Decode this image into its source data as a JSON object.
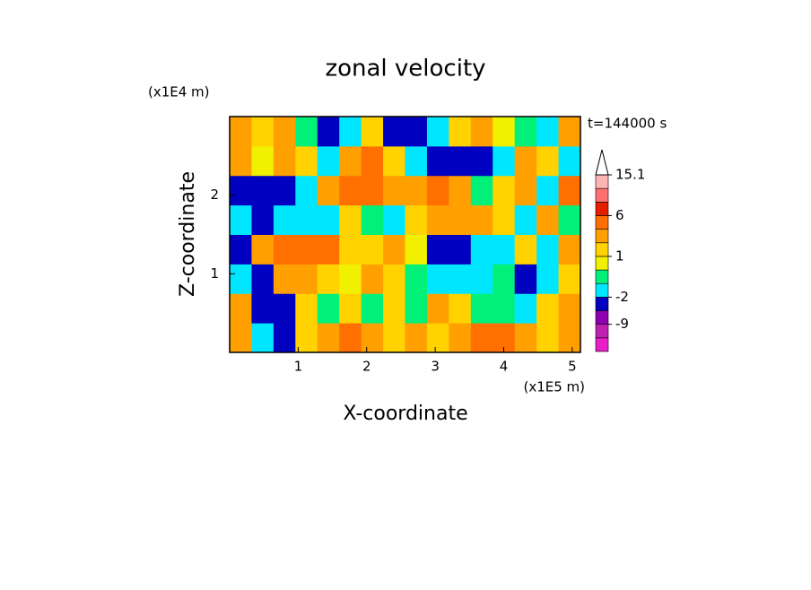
{
  "chart_data": {
    "type": "contour",
    "title": "zonal velocity",
    "x_label": "X-coordinate",
    "y_label": "Z-coordinate",
    "x_unit": "(x1E5 m)",
    "y_unit": "(x1E4 m)",
    "annotation": "t=144000 s",
    "xlim": [
      0,
      5.12
    ],
    "ylim": [
      0,
      3
    ],
    "xticks": [
      1,
      2,
      3,
      4,
      5
    ],
    "yticks": [
      1,
      2
    ],
    "x": [
      0.16,
      0.48,
      0.8,
      1.12,
      1.44,
      1.76,
      2.08,
      2.4,
      2.72,
      3.04,
      3.36,
      3.68,
      4.0,
      4.32,
      4.64,
      4.96
    ],
    "y": [
      0.1875,
      0.5625,
      0.9375,
      1.3125,
      1.6875,
      2.0625,
      2.4375,
      2.8125
    ],
    "z": [
      [
        3,
        -1.5,
        -5,
        1,
        3,
        4,
        3,
        1,
        3,
        1,
        3,
        4,
        4,
        3,
        1,
        3
      ],
      [
        3,
        -5,
        -5,
        1,
        -0.5,
        1,
        -0.5,
        1,
        -0.5,
        3,
        1,
        -0.5,
        -0.5,
        -1.5,
        1,
        3
      ],
      [
        -1.5,
        -5,
        3,
        3,
        1,
        0.5,
        3,
        1,
        -0.5,
        -1.5,
        -1.5,
        -1.5,
        -0.5,
        -5,
        -1.5,
        1
      ],
      [
        -5,
        3,
        5,
        5,
        4,
        1,
        1,
        3,
        0.5,
        -5,
        -5,
        -1.5,
        -1.5,
        1,
        -1.5,
        3
      ],
      [
        -1.5,
        -5,
        -1.5,
        -1.5,
        -1.5,
        1,
        -0.5,
        -1.5,
        1,
        3,
        3,
        3,
        1,
        -1.5,
        3,
        -0.5
      ],
      [
        -5,
        -5,
        -5,
        -1.5,
        3,
        5,
        4,
        3,
        3,
        4,
        3,
        -0.5,
        1,
        3,
        -1.5,
        4
      ],
      [
        3,
        0.5,
        3,
        1,
        -1.5,
        3,
        4,
        1,
        -1.5,
        -5,
        -5,
        -5,
        -1.5,
        3,
        1,
        -1.5
      ],
      [
        3,
        1,
        3,
        -0.5,
        -5,
        -1.5,
        1,
        -5,
        -5,
        -1.5,
        1,
        3,
        0.5,
        -0.5,
        -1.5,
        3
      ]
    ],
    "levels": [
      -15,
      -12,
      -9,
      -5,
      -2,
      -1,
      0,
      1,
      2,
      4,
      6,
      9,
      12,
      15.1
    ],
    "colors": [
      "#e81ec8",
      "#c020b0",
      "#9000b0",
      "#0000c0",
      "#00e6ff",
      "#00f078",
      "#f0f000",
      "#ffd200",
      "#ffa000",
      "#ff7000",
      "#e61e00",
      "#ff7070",
      "#ffb4b4"
    ],
    "colorbar_ticks": [
      -9,
      -2,
      1,
      6,
      15.1
    ]
  }
}
